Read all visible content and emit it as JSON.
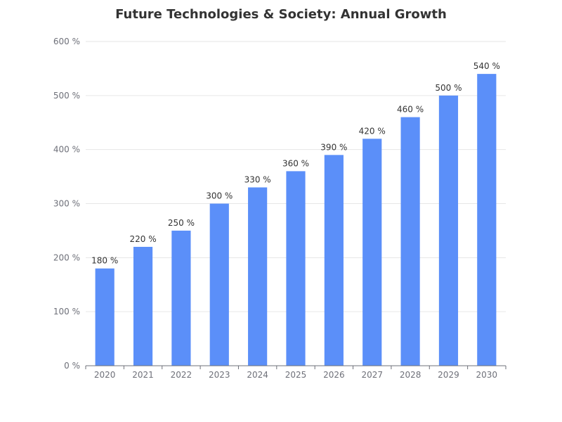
{
  "chart_data": {
    "type": "bar",
    "title": "Future Technologies & Society: Annual Growth",
    "categories": [
      "2020",
      "2021",
      "2022",
      "2023",
      "2024",
      "2025",
      "2026",
      "2027",
      "2028",
      "2029",
      "2030"
    ],
    "values": [
      180,
      220,
      250,
      300,
      330,
      360,
      390,
      420,
      460,
      500,
      540
    ],
    "value_suffix": " %",
    "xlabel": "",
    "ylabel": "",
    "ylim": [
      0,
      600
    ],
    "y_ticks": [
      0,
      100,
      200,
      300,
      400,
      500,
      600
    ],
    "grid": true,
    "data_labels": true,
    "bar_color": "#5b8ff9"
  }
}
